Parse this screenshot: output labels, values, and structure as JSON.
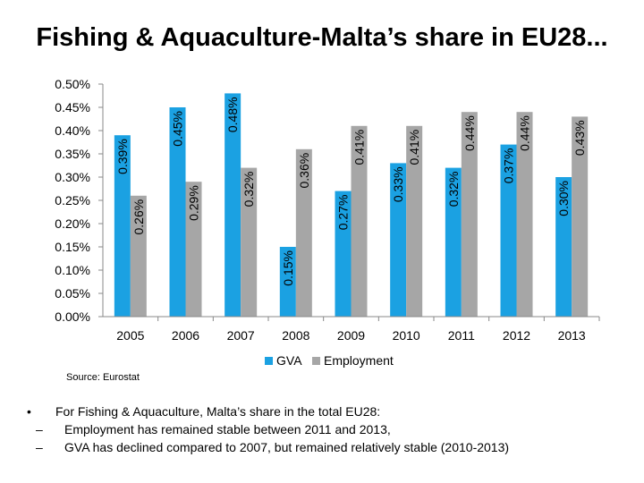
{
  "title": "Fishing & Aquaculture-Malta’s share in EU28...",
  "source": "Source: Eurostat",
  "chart_data": {
    "type": "bar",
    "categories": [
      "2005",
      "2006",
      "2007",
      "2008",
      "2009",
      "2010",
      "2011",
      "2012",
      "2013"
    ],
    "series": [
      {
        "name": "GVA",
        "color": "#1ba1e2",
        "values": [
          0.39,
          0.45,
          0.48,
          0.15,
          0.27,
          0.33,
          0.32,
          0.37,
          0.3
        ]
      },
      {
        "name": "Employment",
        "color": "#a6a6a6",
        "values": [
          0.26,
          0.29,
          0.32,
          0.36,
          0.41,
          0.41,
          0.44,
          0.44,
          0.43
        ]
      }
    ],
    "data_labels": {
      "GVA": [
        "0.39%",
        "0.45%",
        "0.48%",
        "0.15%",
        "0.27%",
        "0.33%",
        "0.32%",
        "0.37%",
        "0.30%"
      ],
      "Employment": [
        "0.26%",
        "0.29%",
        "0.32%",
        "0.36%",
        "0.41%",
        "0.41%",
        "0.44%",
        "0.44%",
        "0.43%"
      ]
    },
    "y_ticks": [
      "0.00%",
      "0.05%",
      "0.10%",
      "0.15%",
      "0.20%",
      "0.25%",
      "0.30%",
      "0.35%",
      "0.40%",
      "0.45%",
      "0.50%"
    ],
    "ylim": [
      0,
      0.5
    ],
    "legend": [
      "GVA",
      "Employment"
    ],
    "legend_position": "bottom",
    "grid": false
  },
  "bullets": {
    "main": "For Fishing & Aquaculture, Malta’s share in the total EU28:",
    "bullet_symbol": "•",
    "dash_symbol": "–",
    "subs": [
      "Employment has remained stable between 2011 and 2013,",
      "GVA has declined compared to 2007, but remained relatively stable (2010-2013)"
    ]
  }
}
